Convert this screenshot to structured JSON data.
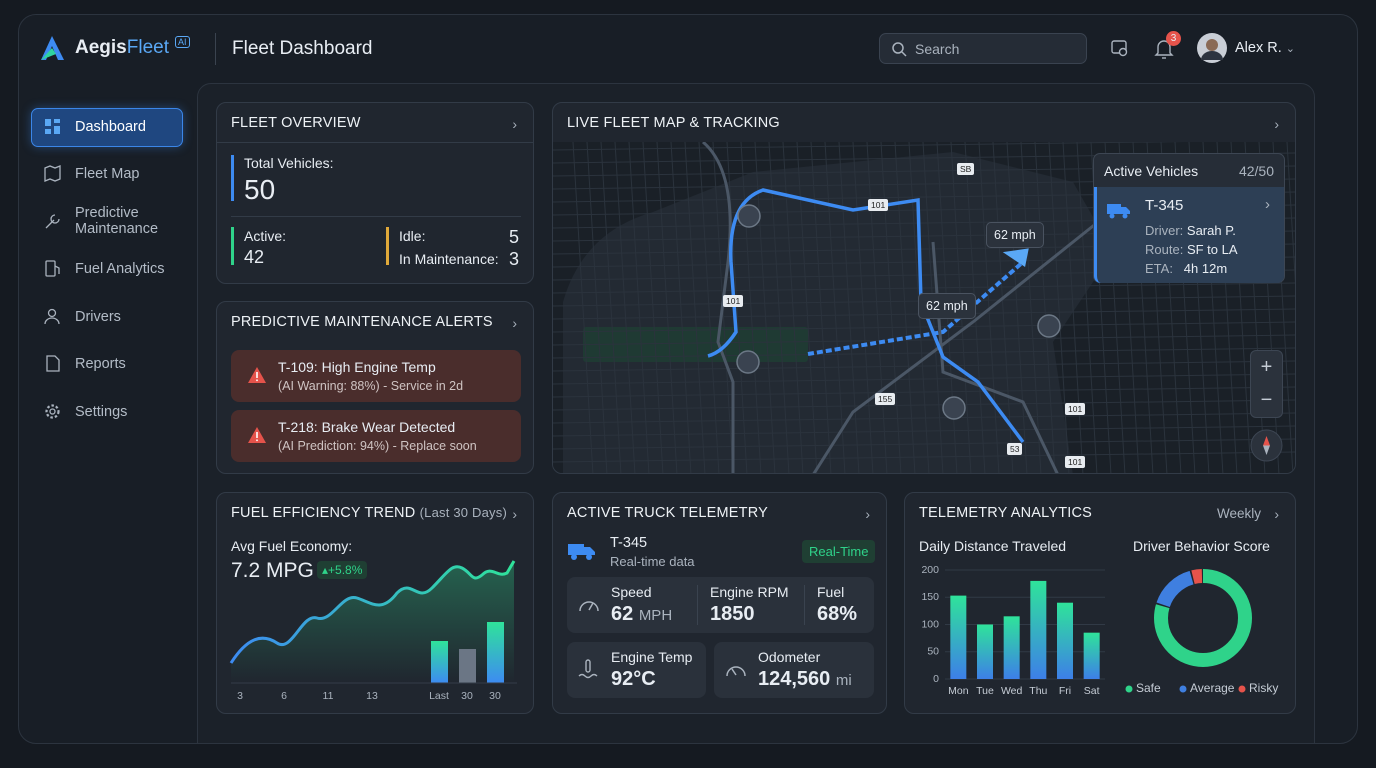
{
  "brand": {
    "name_a": "Aegis",
    "name_b": "Fleet",
    "badge": "AI"
  },
  "header": {
    "title": "Fleet Dashboard",
    "search": "Search",
    "notifications": 3,
    "user": "Alex R."
  },
  "nav": [
    "Dashboard",
    "Fleet Map",
    "Predictive Maintenance",
    "Fuel Analytics",
    "Drivers",
    "Reports",
    "Settings"
  ],
  "fleet_overview": {
    "title": "FLEET OVERVIEW",
    "total_label": "Total Vehicles:",
    "total": 50,
    "active_label": "Active:",
    "active": 42,
    "idle_label": "Idle:",
    "idle": 5,
    "maintenance_label": "In Maintenance:",
    "maintenance": 3
  },
  "alerts": {
    "title": "PREDICTIVE MAINTENANCE ALERTS",
    "items": [
      {
        "title": "T-109: High Engine Temp",
        "detail": "(AI Warning: 88%) - Service in 2d"
      },
      {
        "title": "T-218: Brake Wear Detected",
        "detail": "(AI Prediction: 94%) - Replace soon"
      }
    ]
  },
  "map": {
    "title": "LIVE FLEET MAP & TRACKING",
    "speed_labels": [
      "62 mph",
      "62 mph"
    ],
    "road_labels": [
      "101",
      "101",
      "101",
      "101",
      "155",
      "53",
      "SB"
    ],
    "panel": {
      "title": "Active Vehicles",
      "count": "42/50",
      "vehicle": "T-345",
      "driver_label": "Driver:",
      "driver": "Sarah P.",
      "route_label": "Route:",
      "route": "SF to LA",
      "eta_label": "ETA:",
      "eta": "4h 12m"
    }
  },
  "fuel": {
    "title": "FUEL EFFICIENCY TREND",
    "subtitle": "(Last 30 Days)",
    "avg_label": "Avg Fuel Economy:",
    "avg": "7.2 MPG",
    "change": "+5.8%",
    "x_labels": [
      "3",
      "6",
      "11",
      "13",
      "Last",
      "30",
      "30"
    ]
  },
  "telemetry": {
    "title": "ACTIVE TRUCK TELEMETRY",
    "vehicle": "T-345",
    "subtitle": "Real-time data",
    "status": "Real-Time",
    "speed_label": "Speed",
    "speed": "62",
    "speed_unit": "MPH",
    "rpm_label": "Engine RPM",
    "rpm": "1850",
    "fuel_label": "Fuel",
    "fuel": "68%",
    "temp_label": "Engine Temp",
    "temp": "92°C",
    "odometer_label": "Odometer",
    "odometer": "124,560",
    "odometer_unit": "mi"
  },
  "analytics": {
    "title": "TELEMETRY ANALYTICS",
    "period": "Weekly",
    "distance_chart": {
      "type": "bar",
      "title": "Daily Distance Traveled",
      "categories": [
        "Mon",
        "Tue",
        "Wed",
        "Thu",
        "Fri",
        "Sat"
      ],
      "values": [
        153,
        100,
        115,
        180,
        140,
        85
      ],
      "ylim": [
        0,
        200
      ],
      "yticks": [
        0,
        50,
        100,
        150,
        200
      ],
      "grid": true
    },
    "behavior_chart": {
      "type": "pie",
      "title": "Driver Behavior Score",
      "categories": [
        "Safe",
        "Average",
        "Risky"
      ],
      "values": [
        80,
        16,
        4
      ],
      "colors": [
        "#2fd38a",
        "#3f7fe0",
        "#e5534b"
      ]
    }
  }
}
